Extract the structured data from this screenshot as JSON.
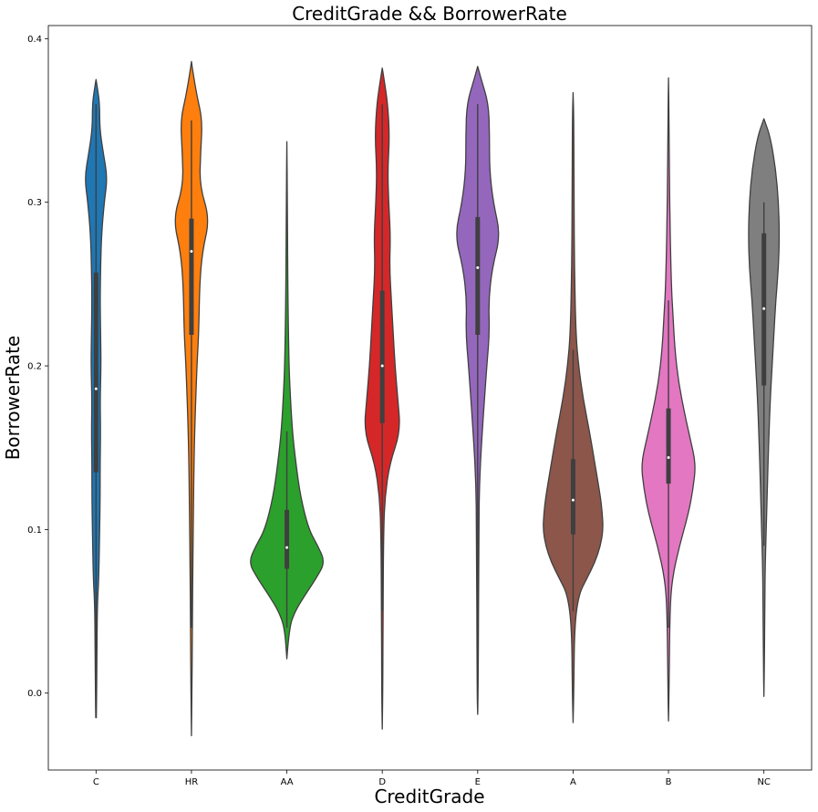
{
  "chart_data": {
    "type": "violin",
    "title": "CreditGrade && BorrowerRate",
    "xlabel": "CreditGrade",
    "ylabel": "BorrowerRate",
    "ylim": [
      -0.047,
      0.408
    ],
    "yticks": [
      0.0,
      0.1,
      0.2,
      0.3,
      0.4
    ],
    "ytick_labels": [
      "0.0",
      "0.1",
      "0.2",
      "0.3",
      "0.4"
    ],
    "grid": false,
    "legend": "none",
    "categories": [
      "C",
      "HR",
      "AA",
      "D",
      "E",
      "A",
      "B",
      "NC"
    ],
    "colors": [
      "#1f77b4",
      "#ff7f0e",
      "#2ca02c",
      "#d62728",
      "#9467bd",
      "#8c564b",
      "#e377c2",
      "#7f7f7f"
    ],
    "violins": [
      {
        "category": "C",
        "ymin": -0.015,
        "ymax": 0.375,
        "whisker_low": 0.0,
        "whisker_high": 0.36,
        "q1": 0.135,
        "median": 0.186,
        "q3": 0.257,
        "profile": [
          [
            -0.015,
            0.3
          ],
          [
            0.0,
            0.7
          ],
          [
            0.03,
            1.0
          ],
          [
            0.055,
            1.5
          ],
          [
            0.07,
            3
          ],
          [
            0.1,
            4
          ],
          [
            0.12,
            4.5
          ],
          [
            0.14,
            4.5
          ],
          [
            0.16,
            5
          ],
          [
            0.18,
            4.5
          ],
          [
            0.2,
            5.5
          ],
          [
            0.22,
            5
          ],
          [
            0.24,
            4.5
          ],
          [
            0.26,
            5
          ],
          [
            0.28,
            6
          ],
          [
            0.3,
            9
          ],
          [
            0.315,
            12.5
          ],
          [
            0.33,
            8
          ],
          [
            0.345,
            4
          ],
          [
            0.36,
            4
          ],
          [
            0.37,
            1.5
          ],
          [
            0.375,
            0
          ]
        ]
      },
      {
        "category": "HR",
        "ymin": -0.026,
        "ymax": 0.386,
        "whisker_low": 0.04,
        "whisker_high": 0.35,
        "q1": 0.219,
        "median": 0.27,
        "q3": 0.29,
        "profile": [
          [
            -0.026,
            0
          ],
          [
            0.0,
            0.6
          ],
          [
            0.04,
            1.0
          ],
          [
            0.08,
            1.5
          ],
          [
            0.1,
            2
          ],
          [
            0.13,
            2.5
          ],
          [
            0.16,
            3.5
          ],
          [
            0.2,
            6
          ],
          [
            0.22,
            8
          ],
          [
            0.25,
            9
          ],
          [
            0.27,
            12
          ],
          [
            0.29,
            20
          ],
          [
            0.31,
            9
          ],
          [
            0.33,
            10
          ],
          [
            0.35,
            12
          ],
          [
            0.365,
            6
          ],
          [
            0.38,
            1.5
          ],
          [
            0.386,
            0
          ]
        ]
      },
      {
        "category": "AA",
        "ymin": 0.021,
        "ymax": 0.337,
        "whisker_low": 0.04,
        "whisker_high": 0.16,
        "q1": 0.076,
        "median": 0.089,
        "q3": 0.112,
        "profile": [
          [
            0.021,
            0
          ],
          [
            0.04,
            2.5
          ],
          [
            0.05,
            9
          ],
          [
            0.06,
            20
          ],
          [
            0.07,
            32
          ],
          [
            0.08,
            42
          ],
          [
            0.09,
            34
          ],
          [
            0.1,
            24
          ],
          [
            0.12,
            15
          ],
          [
            0.14,
            10
          ],
          [
            0.16,
            6
          ],
          [
            0.19,
            3
          ],
          [
            0.21,
            2
          ],
          [
            0.25,
            1
          ],
          [
            0.3,
            0.6
          ],
          [
            0.337,
            0
          ]
        ]
      },
      {
        "category": "D",
        "ymin": -0.022,
        "ymax": 0.382,
        "whisker_low": 0.05,
        "whisker_high": 0.36,
        "q1": 0.165,
        "median": 0.2,
        "q3": 0.246,
        "profile": [
          [
            -0.022,
            0
          ],
          [
            0.0,
            0.6
          ],
          [
            0.05,
            0.8
          ],
          [
            0.1,
            1.5
          ],
          [
            0.12,
            3
          ],
          [
            0.14,
            8
          ],
          [
            0.16,
            20
          ],
          [
            0.18,
            17
          ],
          [
            0.2,
            14
          ],
          [
            0.22,
            12
          ],
          [
            0.24,
            10
          ],
          [
            0.26,
            8
          ],
          [
            0.28,
            9
          ],
          [
            0.3,
            7
          ],
          [
            0.32,
            6
          ],
          [
            0.34,
            8
          ],
          [
            0.36,
            6
          ],
          [
            0.375,
            2
          ],
          [
            0.382,
            0
          ]
        ]
      },
      {
        "category": "E",
        "ymin": -0.013,
        "ymax": 0.383,
        "whisker_low": 0.0,
        "whisker_high": 0.36,
        "q1": 0.219,
        "median": 0.26,
        "q3": 0.291,
        "profile": [
          [
            -0.013,
            0
          ],
          [
            0.0,
            0.6
          ],
          [
            0.1,
            1.2
          ],
          [
            0.13,
            2
          ],
          [
            0.16,
            5
          ],
          [
            0.2,
            10
          ],
          [
            0.22,
            13
          ],
          [
            0.24,
            12
          ],
          [
            0.26,
            16
          ],
          [
            0.28,
            25
          ],
          [
            0.3,
            17
          ],
          [
            0.32,
            13
          ],
          [
            0.34,
            13
          ],
          [
            0.36,
            12
          ],
          [
            0.375,
            4
          ],
          [
            0.383,
            0
          ]
        ]
      },
      {
        "category": "A",
        "ymin": -0.018,
        "ymax": 0.367,
        "whisker_low": 0.05,
        "whisker_high": 0.21,
        "q1": 0.097,
        "median": 0.118,
        "q3": 0.143,
        "profile": [
          [
            -0.018,
            0
          ],
          [
            0.0,
            0.8
          ],
          [
            0.04,
            1.5
          ],
          [
            0.06,
            6
          ],
          [
            0.07,
            15
          ],
          [
            0.08,
            24
          ],
          [
            0.09,
            30
          ],
          [
            0.1,
            33
          ],
          [
            0.11,
            32
          ],
          [
            0.12,
            30
          ],
          [
            0.14,
            24
          ],
          [
            0.16,
            18
          ],
          [
            0.18,
            11
          ],
          [
            0.2,
            6
          ],
          [
            0.22,
            3
          ],
          [
            0.26,
            1.5
          ],
          [
            0.3,
            1
          ],
          [
            0.35,
            0.8
          ],
          [
            0.367,
            0
          ]
        ]
      },
      {
        "category": "B",
        "ymin": -0.017,
        "ymax": 0.376,
        "whisker_low": 0.04,
        "whisker_high": 0.24,
        "q1": 0.128,
        "median": 0.144,
        "q3": 0.174,
        "profile": [
          [
            -0.017,
            0
          ],
          [
            0.0,
            0.6
          ],
          [
            0.05,
            1.5
          ],
          [
            0.07,
            4
          ],
          [
            0.09,
            12
          ],
          [
            0.11,
            22
          ],
          [
            0.125,
            27
          ],
          [
            0.14,
            30
          ],
          [
            0.155,
            24
          ],
          [
            0.17,
            18
          ],
          [
            0.19,
            11
          ],
          [
            0.21,
            7
          ],
          [
            0.23,
            5
          ],
          [
            0.25,
            3
          ],
          [
            0.3,
            1.2
          ],
          [
            0.35,
            0.6
          ],
          [
            0.376,
            0
          ]
        ]
      },
      {
        "category": "NC",
        "ymin": -0.002,
        "ymax": 0.351,
        "whisker_low": 0.09,
        "whisker_high": 0.3,
        "q1": 0.188,
        "median": 0.235,
        "q3": 0.281,
        "profile": [
          [
            -0.002,
            0
          ],
          [
            0.02,
            0.6
          ],
          [
            0.06,
            1.0
          ],
          [
            0.08,
            1.5
          ],
          [
            0.1,
            2.5
          ],
          [
            0.12,
            3.5
          ],
          [
            0.15,
            5
          ],
          [
            0.18,
            7
          ],
          [
            0.2,
            9
          ],
          [
            0.22,
            11
          ],
          [
            0.24,
            13
          ],
          [
            0.26,
            16
          ],
          [
            0.28,
            17
          ],
          [
            0.3,
            16
          ],
          [
            0.32,
            13
          ],
          [
            0.34,
            7
          ],
          [
            0.351,
            0
          ]
        ]
      }
    ]
  }
}
